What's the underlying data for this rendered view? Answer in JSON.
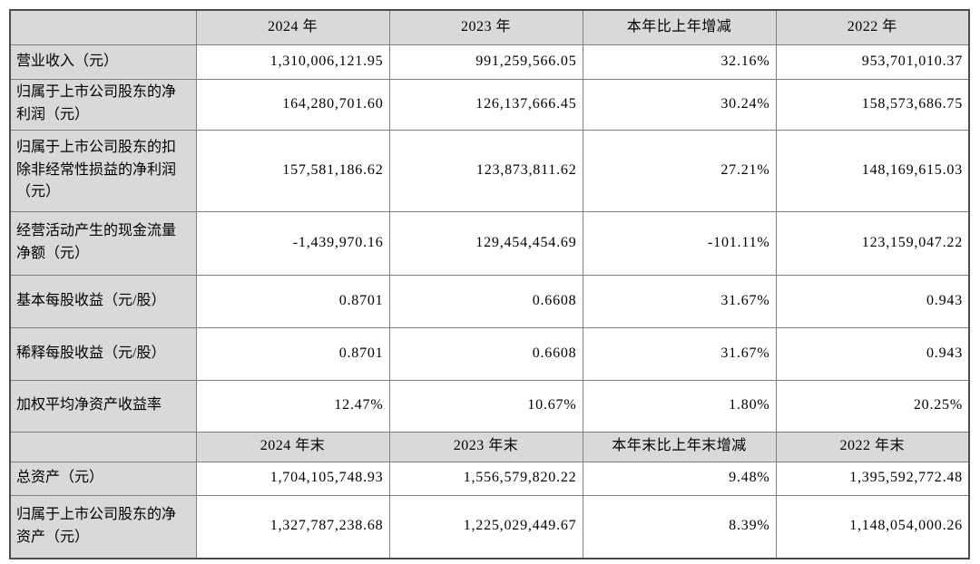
{
  "table": {
    "sections": [
      {
        "header": {
          "corner": "",
          "col1": "2024 年",
          "col2": "2023 年",
          "col3": "本年比上年增减",
          "col4": "2022 年"
        },
        "rows": [
          {
            "label": "营业收入（元）",
            "v1": "1,310,006,121.95",
            "v2": "991,259,566.05",
            "v3": "32.16%",
            "v4": "953,701,010.37"
          },
          {
            "label": "归属于上市公司股东的净利润（元）",
            "v1": "164,280,701.60",
            "v2": "126,137,666.45",
            "v3": "30.24%",
            "v4": "158,573,686.75"
          },
          {
            "label": "归属于上市公司股东的扣除非经常性损益的净利润（元）",
            "v1": "157,581,186.62",
            "v2": "123,873,811.62",
            "v3": "27.21%",
            "v4": "148,169,615.03"
          },
          {
            "label": "经营活动产生的现金流量净额（元）",
            "v1": "-1,439,970.16",
            "v2": "129,454,454.69",
            "v3": "-101.11%",
            "v4": "123,159,047.22"
          },
          {
            "label": "基本每股收益（元/股）",
            "v1": "0.8701",
            "v2": "0.6608",
            "v3": "31.67%",
            "v4": "0.943"
          },
          {
            "label": "稀释每股收益（元/股）",
            "v1": "0.8701",
            "v2": "0.6608",
            "v3": "31.67%",
            "v4": "0.943"
          },
          {
            "label": "加权平均净资产收益率",
            "v1": "12.47%",
            "v2": "10.67%",
            "v3": "1.80%",
            "v4": "20.25%"
          }
        ]
      },
      {
        "header": {
          "corner": "",
          "col1": "2024 年末",
          "col2": "2023 年末",
          "col3": "本年末比上年末增减",
          "col4": "2022 年末"
        },
        "rows": [
          {
            "label": "总资产（元）",
            "v1": "1,704,105,748.93",
            "v2": "1,556,579,820.22",
            "v3": "9.48%",
            "v4": "1,395,592,772.48"
          },
          {
            "label": "归属于上市公司股东的净资产（元）",
            "v1": "1,327,787,238.68",
            "v2": "1,225,029,449.67",
            "v3": "8.39%",
            "v4": "1,148,054,000.26"
          }
        ]
      }
    ]
  }
}
